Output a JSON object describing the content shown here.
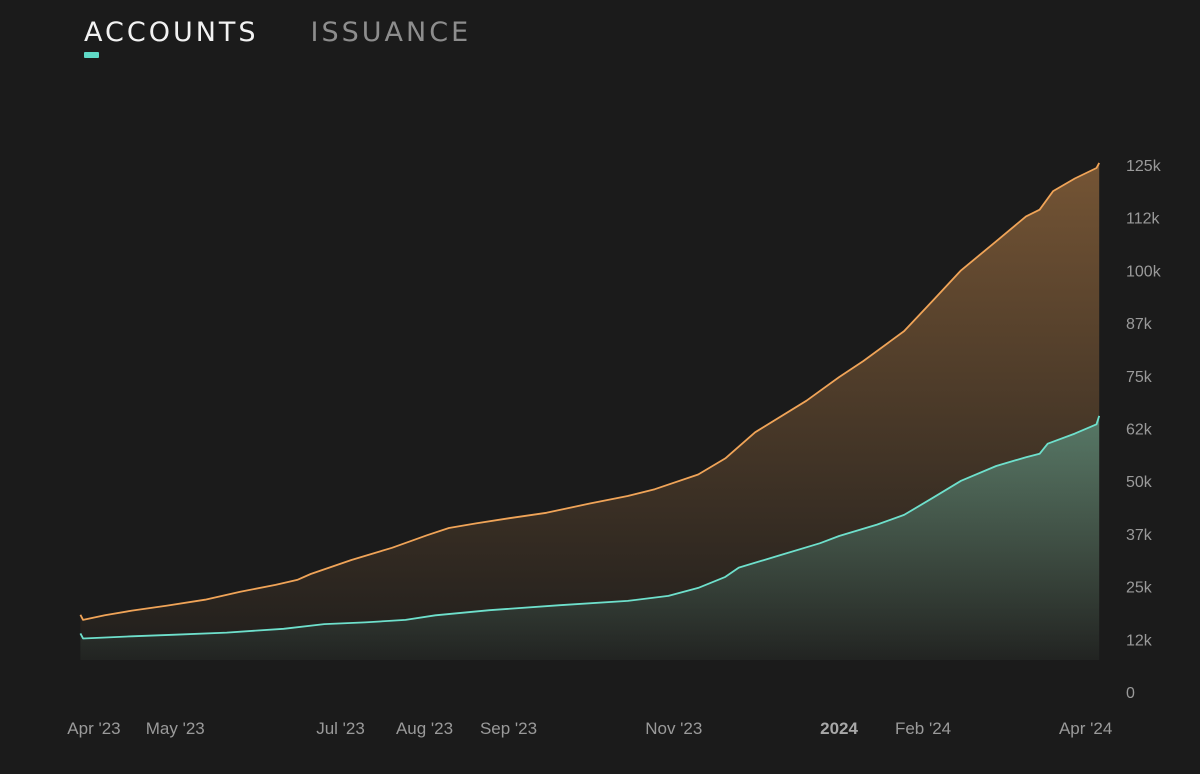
{
  "tabs": [
    {
      "label": "ACCOUNTS",
      "active": true
    },
    {
      "label": "ISSUANCE",
      "active": false
    }
  ],
  "colors": {
    "background": "#1b1b1b",
    "accent": "#5fd9c6",
    "orange": "#f0a458",
    "teal": "#6ee0cc"
  },
  "chart_data": {
    "type": "area",
    "title": "",
    "xlabel": "",
    "ylabel": "",
    "ylim": [
      0,
      125000
    ],
    "y_ticks": [
      {
        "value": 0,
        "label": "0"
      },
      {
        "value": 12500,
        "label": "12k"
      },
      {
        "value": 25000,
        "label": "25k"
      },
      {
        "value": 37500,
        "label": "37k"
      },
      {
        "value": 50000,
        "label": "50k"
      },
      {
        "value": 62500,
        "label": "62k"
      },
      {
        "value": 75000,
        "label": "75k"
      },
      {
        "value": 87500,
        "label": "87k"
      },
      {
        "value": 100000,
        "label": "100k"
      },
      {
        "value": 112500,
        "label": "112k"
      },
      {
        "value": 125000,
        "label": "125k"
      }
    ],
    "xlim": [
      "2023-03-25",
      "2024-04-10"
    ],
    "x_ticks": [
      {
        "date": "2023-04-01",
        "label": "Apr '23",
        "bold": false
      },
      {
        "date": "2023-05-01",
        "label": "May '23",
        "bold": false
      },
      {
        "date": "2023-07-01",
        "label": "Jul '23",
        "bold": false
      },
      {
        "date": "2023-08-01",
        "label": "Aug '23",
        "bold": false
      },
      {
        "date": "2023-09-01",
        "label": "Sep '23",
        "bold": false
      },
      {
        "date": "2023-11-01",
        "label": "Nov '23",
        "bold": false
      },
      {
        "date": "2024-01-01",
        "label": "2024",
        "bold": true
      },
      {
        "date": "2024-02-01",
        "label": "Feb '24",
        "bold": false
      },
      {
        "date": "2024-04-01",
        "label": "Apr '24",
        "bold": false
      }
    ],
    "series": [
      {
        "color": "#f0a458",
        "points": [
          [
            "2023-03-27",
            18300
          ],
          [
            "2023-03-28",
            17100
          ],
          [
            "2023-04-05",
            18200
          ],
          [
            "2023-04-15",
            19300
          ],
          [
            "2023-04-28",
            20500
          ],
          [
            "2023-05-12",
            21900
          ],
          [
            "2023-05-25",
            23800
          ],
          [
            "2023-06-07",
            25400
          ],
          [
            "2023-06-15",
            26600
          ],
          [
            "2023-06-20",
            28000
          ],
          [
            "2023-07-05",
            31300
          ],
          [
            "2023-07-20",
            34200
          ],
          [
            "2023-08-02",
            37200
          ],
          [
            "2023-08-10",
            38900
          ],
          [
            "2023-08-20",
            40000
          ],
          [
            "2023-09-01",
            41200
          ],
          [
            "2023-09-15",
            42500
          ],
          [
            "2023-10-01",
            44700
          ],
          [
            "2023-10-15",
            46500
          ],
          [
            "2023-10-25",
            48100
          ],
          [
            "2023-11-10",
            51600
          ],
          [
            "2023-11-20",
            55400
          ],
          [
            "2023-12-01",
            61600
          ],
          [
            "2023-12-20",
            69100
          ],
          [
            "2024-01-01",
            74700
          ],
          [
            "2024-01-10",
            78500
          ],
          [
            "2024-01-25",
            85600
          ],
          [
            "2024-02-05",
            93100
          ],
          [
            "2024-02-15",
            100000
          ],
          [
            "2024-02-28",
            106900
          ],
          [
            "2024-03-10",
            112800
          ],
          [
            "2024-03-15",
            114400
          ],
          [
            "2024-03-20",
            118800
          ],
          [
            "2024-03-28",
            121800
          ],
          [
            "2024-04-05",
            124300
          ],
          [
            "2024-04-06",
            125500
          ]
        ]
      },
      {
        "color": "#6ee0cc",
        "points": [
          [
            "2023-03-27",
            13900
          ],
          [
            "2023-03-28",
            12700
          ],
          [
            "2023-04-15",
            13200
          ],
          [
            "2023-05-01",
            13600
          ],
          [
            "2023-05-20",
            14100
          ],
          [
            "2023-06-10",
            15000
          ],
          [
            "2023-06-25",
            16100
          ],
          [
            "2023-07-10",
            16500
          ],
          [
            "2023-07-25",
            17100
          ],
          [
            "2023-08-05",
            18200
          ],
          [
            "2023-08-25",
            19400
          ],
          [
            "2023-09-20",
            20600
          ],
          [
            "2023-10-15",
            21600
          ],
          [
            "2023-10-30",
            22800
          ],
          [
            "2023-11-10",
            24700
          ],
          [
            "2023-11-20",
            27300
          ],
          [
            "2023-11-25",
            29500
          ],
          [
            "2023-12-10",
            32400
          ],
          [
            "2023-12-25",
            35300
          ],
          [
            "2024-01-01",
            37000
          ],
          [
            "2024-01-15",
            39700
          ],
          [
            "2024-01-25",
            42000
          ],
          [
            "2024-02-05",
            46200
          ],
          [
            "2024-02-15",
            50100
          ],
          [
            "2024-02-28",
            53600
          ],
          [
            "2024-03-10",
            55700
          ],
          [
            "2024-03-15",
            56500
          ],
          [
            "2024-03-18",
            58900
          ],
          [
            "2024-03-28",
            61300
          ],
          [
            "2024-04-05",
            63500
          ],
          [
            "2024-04-06",
            65500
          ]
        ]
      }
    ]
  }
}
